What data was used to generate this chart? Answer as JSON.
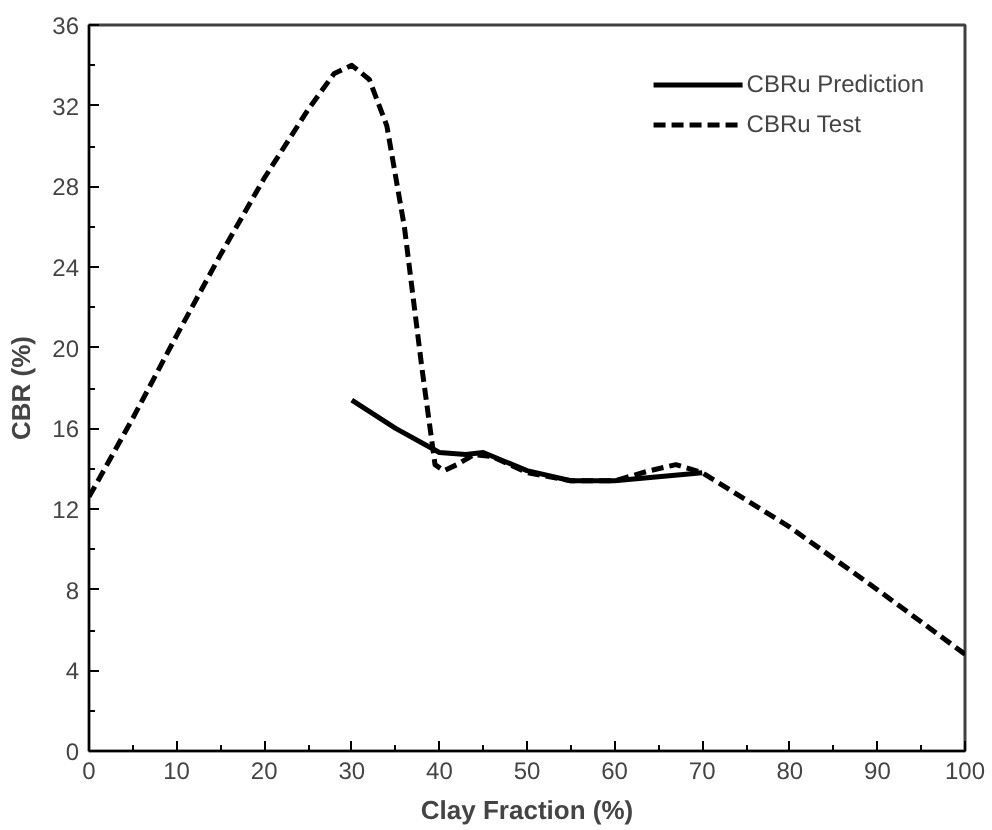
{
  "chart_data": {
    "type": "line",
    "xlabel": "Clay Fraction (%)",
    "ylabel": "CBR (%)",
    "xlim": [
      0,
      100
    ],
    "xticks": [
      0,
      10,
      20,
      30,
      40,
      50,
      60,
      70,
      80,
      90,
      100
    ],
    "ylim": [
      0,
      36
    ],
    "yticks": [
      0,
      4,
      8,
      12,
      16,
      20,
      24,
      28,
      32,
      36
    ],
    "grid": false,
    "legend": "top right",
    "marker": "none",
    "series": [
      {
        "name": "CBRu Prediction",
        "color": "#000000",
        "line_style": "solid",
        "x": [
          30,
          35,
          40,
          43,
          45,
          50,
          55,
          60,
          65,
          70
        ],
        "values": [
          17.4,
          16.0,
          14.8,
          14.7,
          14.8,
          13.9,
          13.4,
          13.4,
          13.6,
          13.8
        ]
      },
      {
        "name": "CBRu Test",
        "color": "#000000",
        "line_style": "dashed",
        "x": [
          0,
          5,
          10,
          15,
          20,
          25,
          28,
          30,
          32,
          34,
          36,
          38,
          39.5,
          40.5,
          42,
          44,
          46,
          50,
          55,
          60,
          64,
          67,
          70,
          80,
          90,
          100
        ],
        "values": [
          12.6,
          16.5,
          20.6,
          24.6,
          28.4,
          31.8,
          33.6,
          34,
          33.3,
          31,
          26,
          19,
          14.2,
          13.9,
          14.2,
          14.7,
          14.6,
          13.8,
          13.4,
          13.4,
          13.9,
          14.2,
          13.8,
          11.1,
          8.0,
          4.8
        ]
      }
    ]
  }
}
